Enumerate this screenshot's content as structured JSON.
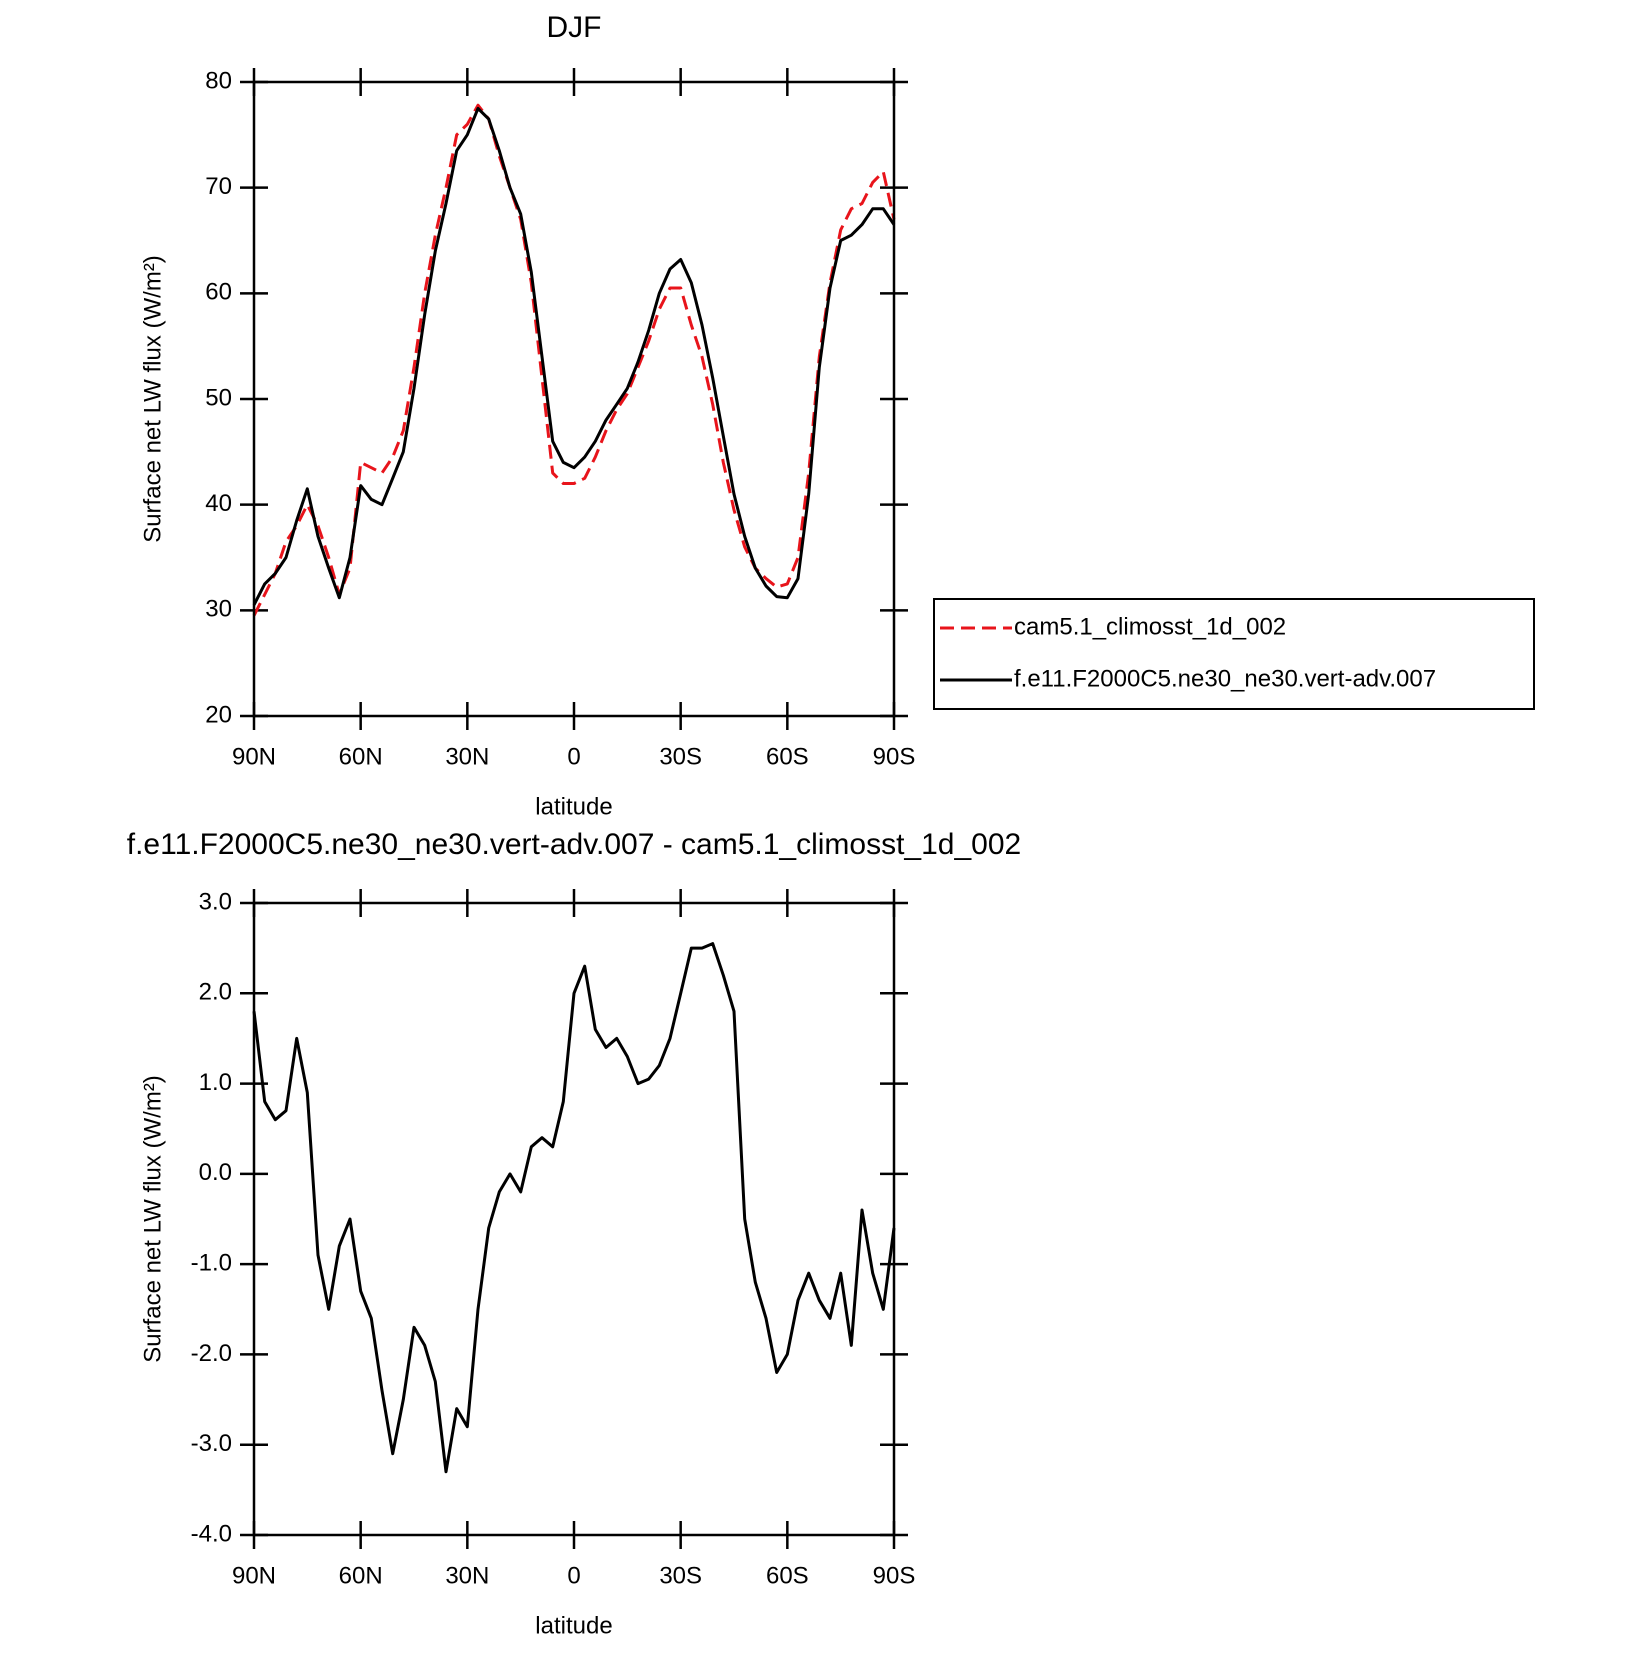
{
  "chart_data": [
    {
      "type": "line",
      "title": "DJF",
      "xlabel": "latitude",
      "ylabel": "Surface net LW flux (W/m²)",
      "x": [
        90,
        87,
        84,
        81,
        78,
        75,
        72,
        69,
        66,
        63,
        60,
        57,
        54,
        51,
        48,
        45,
        42,
        39,
        36,
        33,
        30,
        27,
        24,
        21,
        18,
        15,
        12,
        9,
        6,
        3,
        0,
        -3,
        -6,
        -9,
        -12,
        -15,
        -18,
        -21,
        -24,
        -27,
        -30,
        -33,
        -36,
        -39,
        -42,
        -45,
        -48,
        -51,
        -54,
        -57,
        -60,
        -63,
        -66,
        -69,
        -72,
        -75,
        -78,
        -81,
        -84,
        -87,
        -90
      ],
      "series": [
        {
          "name": "cam5.1_climosst_1d_002",
          "color": "#e8141b",
          "dash": true,
          "values": [
            29.5,
            31.5,
            33.5,
            36.5,
            38,
            40,
            38,
            35,
            31.5,
            34,
            44,
            43.5,
            43,
            44.5,
            47,
            53,
            60,
            65.5,
            70,
            75,
            76,
            77.8,
            76.5,
            73,
            70,
            67,
            61,
            52,
            43,
            42,
            42,
            42.5,
            44.5,
            47,
            49,
            50.5,
            53,
            55.5,
            58.5,
            60.5,
            60.5,
            57,
            54,
            49.5,
            44,
            39.5,
            36,
            34,
            33,
            32.2,
            32.5,
            35,
            43,
            54,
            61,
            66,
            68,
            68.5,
            70.5,
            71.5,
            67
          ]
        },
        {
          "name": "f.e11.F2000C5.ne30_ne30.vert-adv.007",
          "color": "#000000",
          "dash": false,
          "values": [
            30.5,
            32.5,
            33.5,
            35,
            38.5,
            41.5,
            37,
            34,
            31.2,
            35,
            41.8,
            40.5,
            40,
            42.5,
            45,
            51,
            58,
            64,
            68.5,
            73.5,
            75,
            77.5,
            76.5,
            73.5,
            70,
            67.5,
            62,
            54,
            46,
            44,
            43.5,
            44.5,
            46,
            48,
            49.5,
            51,
            53.5,
            56.5,
            60,
            62.3,
            63.2,
            61,
            57,
            52,
            46.5,
            41,
            37,
            34,
            32.3,
            31.3,
            31.2,
            33,
            41,
            53,
            60.5,
            65,
            65.5,
            66.5,
            68,
            68,
            66.5
          ]
        }
      ],
      "xlim": [
        90,
        -90
      ],
      "xticks": [
        {
          "value": 90,
          "label": "90N"
        },
        {
          "value": 60,
          "label": "60N"
        },
        {
          "value": 30,
          "label": "30N"
        },
        0,
        {
          "value": -30,
          "label": "30S"
        },
        {
          "value": -60,
          "label": "60S"
        },
        {
          "value": -90,
          "label": "90S"
        }
      ],
      "ylim": [
        20,
        80
      ],
      "yticks": [
        20,
        30,
        40,
        50,
        60,
        70,
        80
      ],
      "legend": "right"
    },
    {
      "type": "line",
      "title": "f.e11.F2000C5.ne30_ne30.vert-adv.007 - cam5.1_climosst_1d_002",
      "xlabel": "latitude",
      "ylabel": "Surface net LW flux (W/m²)",
      "x": [
        90,
        87,
        84,
        81,
        78,
        75,
        72,
        69,
        66,
        63,
        60,
        57,
        54,
        51,
        48,
        45,
        42,
        39,
        36,
        33,
        30,
        27,
        24,
        21,
        18,
        15,
        12,
        9,
        6,
        3,
        0,
        -3,
        -6,
        -9,
        -12,
        -15,
        -18,
        -21,
        -24,
        -27,
        -30,
        -33,
        -36,
        -39,
        -42,
        -45,
        -48,
        -51,
        -54,
        -57,
        -60,
        -63,
        -66,
        -69,
        -72,
        -75,
        -78,
        -81,
        -84,
        -87,
        -90
      ],
      "color": "#000000",
      "values": [
        1.8,
        0.8,
        0.6,
        0.7,
        1.5,
        0.9,
        -0.9,
        -1.5,
        -0.8,
        -0.5,
        -1.3,
        -1.6,
        -2.4,
        -3.1,
        -2.5,
        -1.7,
        -1.9,
        -2.3,
        -3.3,
        -2.6,
        -2.8,
        -1.5,
        -0.6,
        -0.2,
        0.0,
        -0.2,
        0.3,
        0.4,
        0.3,
        0.8,
        2.0,
        2.3,
        1.6,
        1.4,
        1.5,
        1.3,
        1.0,
        1.05,
        1.2,
        1.5,
        2.0,
        2.5,
        2.5,
        2.55,
        2.2,
        1.8,
        -0.5,
        -1.2,
        -1.6,
        -2.2,
        -2.0,
        -1.4,
        -1.1,
        -1.4,
        -1.6,
        -1.1,
        -1.9,
        -0.4,
        -1.1,
        -1.5,
        -0.6
      ],
      "xlim": [
        90,
        -90
      ],
      "xticks": [
        {
          "value": 90,
          "label": "90N"
        },
        {
          "value": 60,
          "label": "60N"
        },
        {
          "value": 30,
          "label": "30N"
        },
        0,
        {
          "value": -30,
          "label": "30S"
        },
        {
          "value": -60,
          "label": "60S"
        },
        {
          "value": -90,
          "label": "90S"
        }
      ],
      "ylim": [
        -4,
        3
      ],
      "yticks": [
        {
          "value": -4,
          "label": "-4.0"
        },
        {
          "value": -3,
          "label": "-3.0"
        },
        {
          "value": -2,
          "label": "-2.0"
        },
        {
          "value": -1,
          "label": "-1.0"
        },
        {
          "value": 0,
          "label": "0.0"
        },
        {
          "value": 1,
          "label": "1.0"
        },
        {
          "value": 2,
          "label": "2.0"
        },
        {
          "value": 3,
          "label": "3.0"
        }
      ]
    }
  ]
}
